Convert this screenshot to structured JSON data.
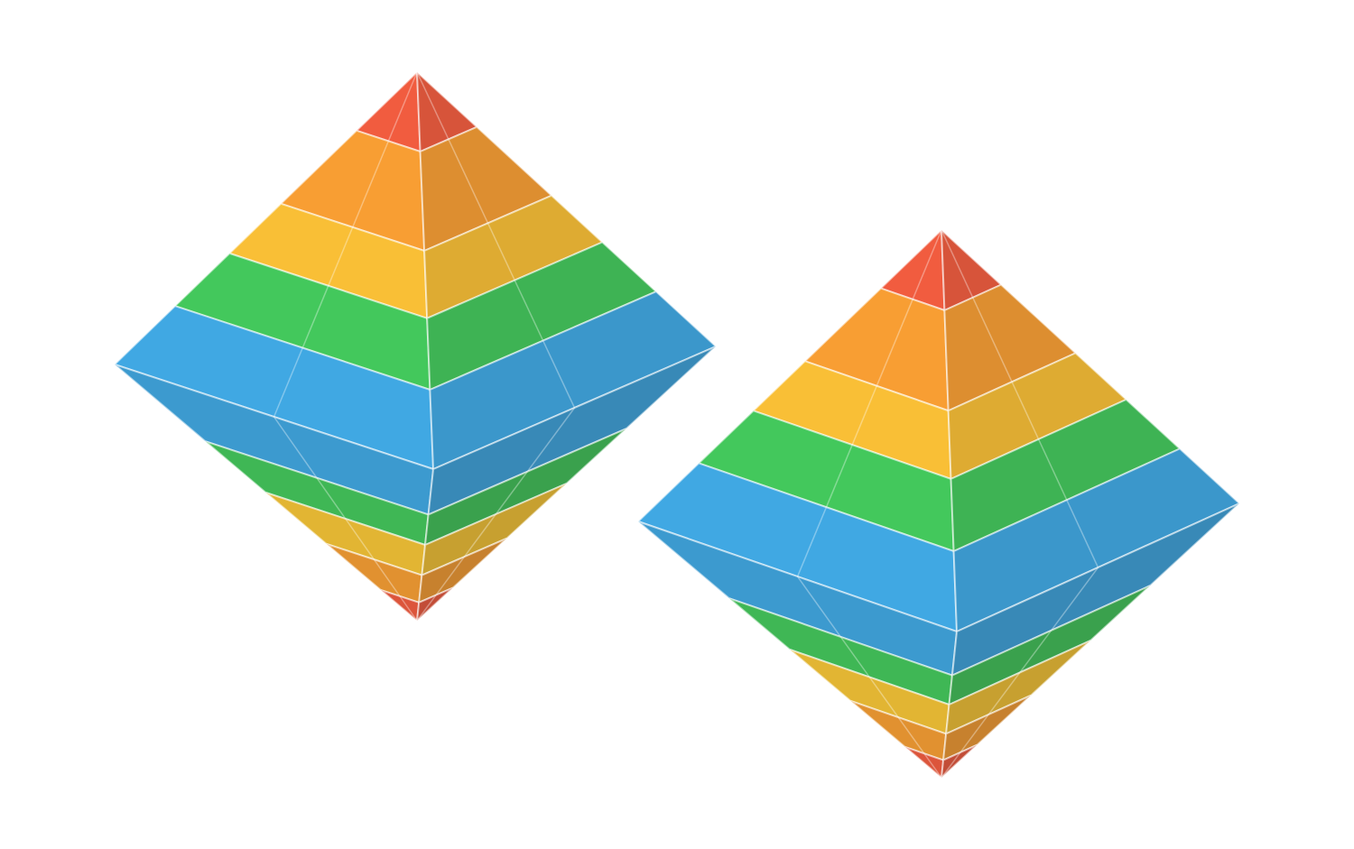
{
  "scene": {
    "background": "#ffffff",
    "objects": [
      "octahedron-left",
      "octahedron-right"
    ],
    "layer_colors_top_to_middle": [
      "#f04a2a",
      "#f7941d",
      "#f8b820",
      "#2fc24a",
      "#2b9fe0"
    ],
    "layer_colors_middle_to_bottom": [
      "#2b9fe0",
      "#2fc24a",
      "#f8c020",
      "#f7941d",
      "#f04a2a"
    ]
  }
}
